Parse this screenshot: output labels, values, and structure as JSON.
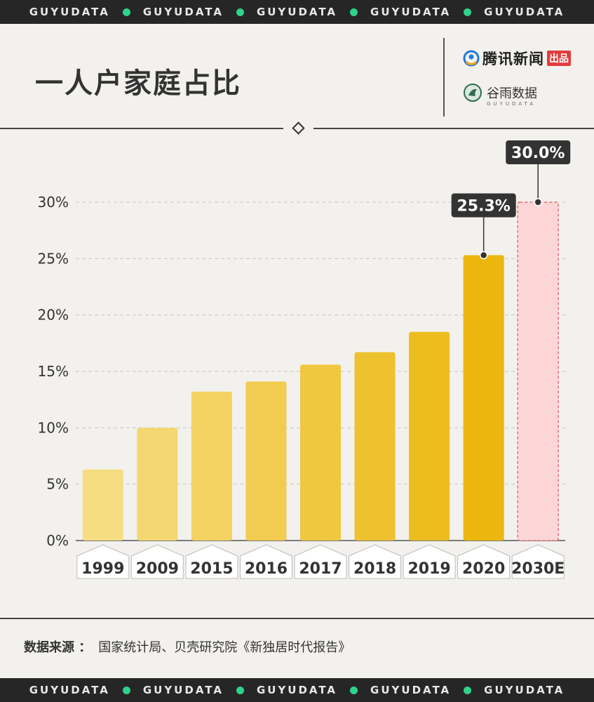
{
  "banner": {
    "words": [
      "GUYUDATA",
      "GUYUDATA",
      "GUYUDATA",
      "GUYUDATA",
      "GUYUDATA"
    ]
  },
  "header": {
    "title": "一人户家庭占比",
    "brand_tencent": "腾讯新闻",
    "brand_tencent_badge": "出品",
    "brand_guyu": "谷雨数据",
    "brand_guyu_sub": "GUYUDATA"
  },
  "source": {
    "label": "数据来源 ：",
    "text": "国家统计局、贝壳研究院《新独居时代报告》"
  },
  "chart_data": {
    "type": "bar",
    "title": "一人户家庭占比",
    "categories": [
      "1999",
      "2009",
      "2015",
      "2016",
      "2017",
      "2018",
      "2019",
      "2020",
      "2030E"
    ],
    "values": [
      6.3,
      10.0,
      13.2,
      14.1,
      15.6,
      16.7,
      18.5,
      25.3,
      30.0
    ],
    "data_labels": [
      {
        "index": 7,
        "text": "25.3%"
      },
      {
        "index": 8,
        "text": "30.0%"
      }
    ],
    "y_ticks": [
      "0%",
      "5%",
      "10%",
      "15%",
      "20%",
      "25%",
      "30%"
    ],
    "ylim": [
      0,
      30
    ],
    "grid": true,
    "colors": {
      "bar_light": "#f6dd82",
      "bar_dark": "#ebb60e",
      "forecast_fill": "#fcd6d6",
      "forecast_border": "#e0707a",
      "label_bg": "#333333"
    }
  }
}
